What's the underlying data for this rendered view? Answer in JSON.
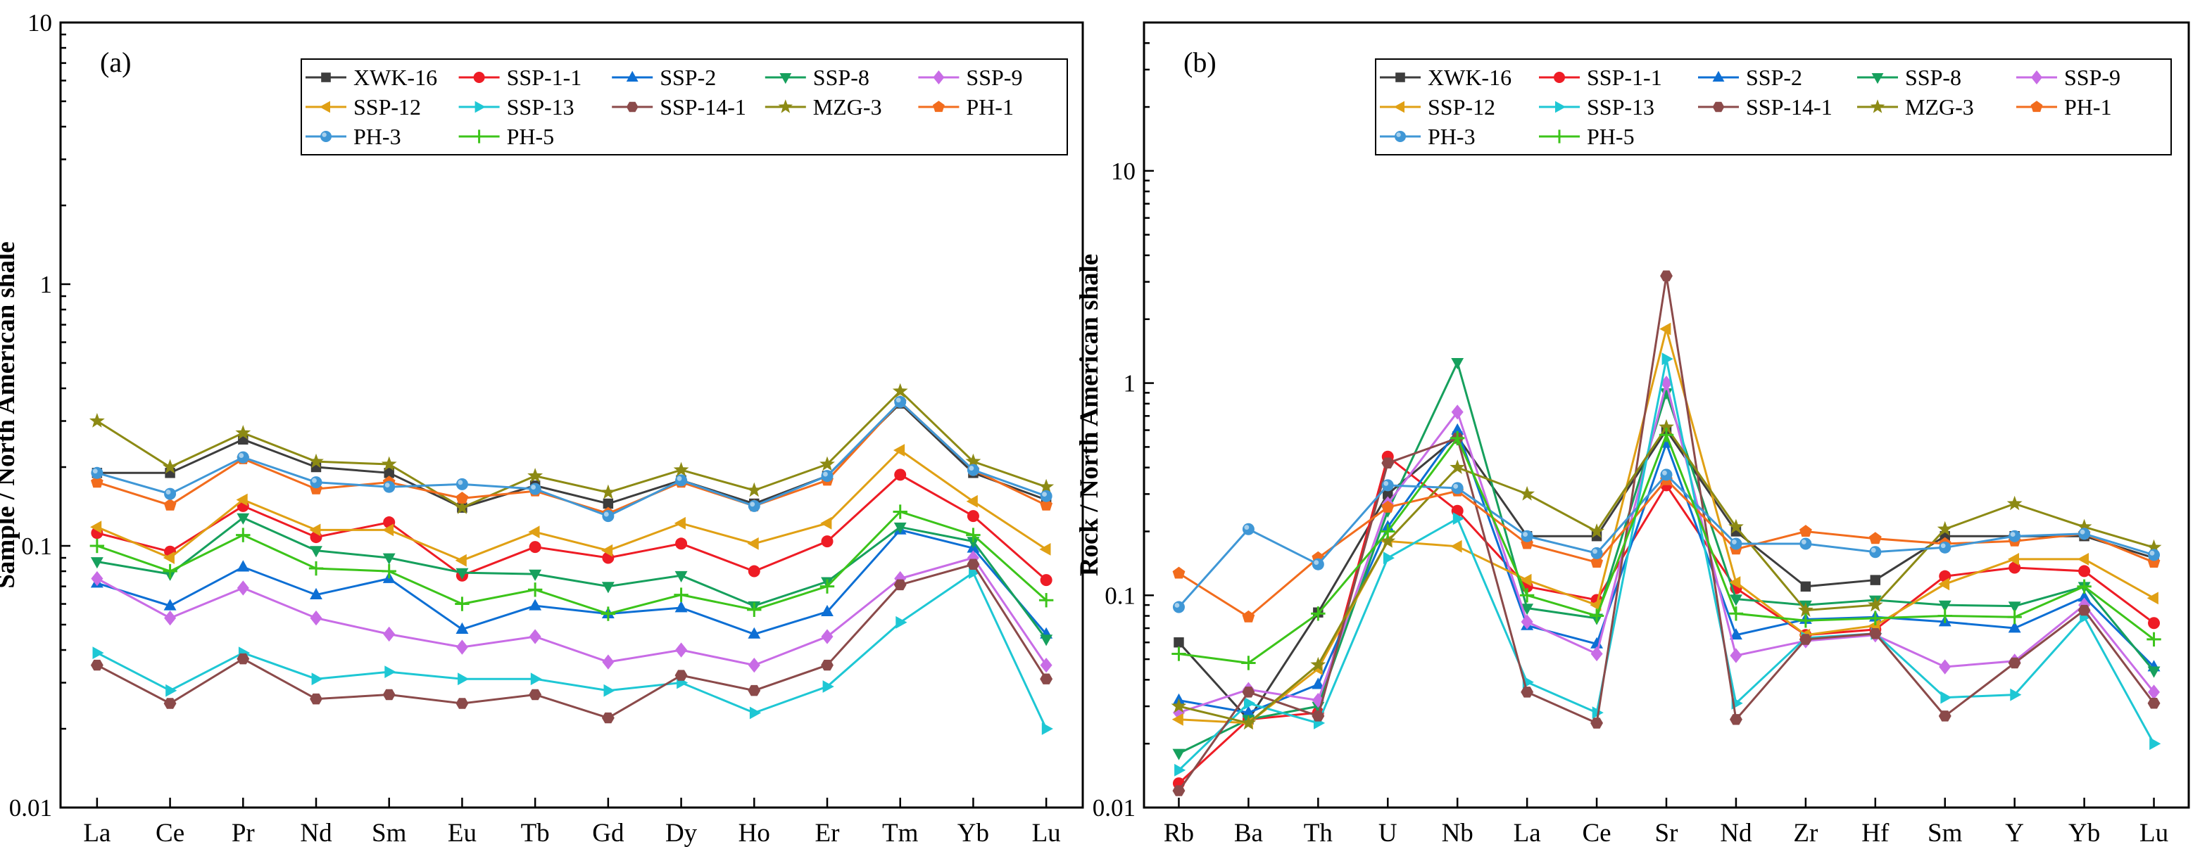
{
  "series_styles": [
    {
      "name": "XWK-16",
      "color": "#3d3d3d",
      "marker": "square"
    },
    {
      "name": "SSP-1-1",
      "color": "#ee1c25",
      "marker": "circle"
    },
    {
      "name": "SSP-2",
      "color": "#0d6fd4",
      "marker": "triangle-up"
    },
    {
      "name": "SSP-8",
      "color": "#16a05d",
      "marker": "triangle-down"
    },
    {
      "name": "SSP-9",
      "color": "#c86ce6",
      "marker": "diamond"
    },
    {
      "name": "SSP-12",
      "color": "#e0a014",
      "marker": "triangle-left"
    },
    {
      "name": "SSP-13",
      "color": "#1ec7d4",
      "marker": "triangle-right"
    },
    {
      "name": "SSP-14-1",
      "color": "#8b4a4a",
      "marker": "hexagon"
    },
    {
      "name": "MZG-3",
      "color": "#8c8a14",
      "marker": "star"
    },
    {
      "name": "PH-1",
      "color": "#f26c1d",
      "marker": "pentagon"
    },
    {
      "name": "PH-3",
      "color": "#3f97d6",
      "marker": "circle-dot"
    },
    {
      "name": "PH-5",
      "color": "#3cc41a",
      "marker": "plus"
    }
  ],
  "chart_data": [
    {
      "type": "line",
      "panel_label": "(a)",
      "ylabel": "Sample / North American shale",
      "xlabel": "",
      "yscale": "log",
      "ylim": [
        0.01,
        10
      ],
      "y_ticks": [
        0.01,
        0.1,
        1,
        10
      ],
      "y_tick_labels": [
        "0.01",
        "0.1",
        "1",
        "10"
      ],
      "categories": [
        "La",
        "Ce",
        "Pr",
        "Nd",
        "Sm",
        "Eu",
        "Tb",
        "Gd",
        "Dy",
        "Ho",
        "Er",
        "Tm",
        "Yb",
        "Lu"
      ],
      "legend_position": "top-right",
      "series": [
        {
          "name": "XWK-16",
          "values": [
            0.19,
            0.19,
            0.255,
            0.2,
            0.19,
            0.14,
            0.17,
            0.145,
            0.178,
            0.145,
            0.185,
            0.35,
            0.19,
            0.15
          ]
        },
        {
          "name": "SSP-1-1",
          "values": [
            0.112,
            0.095,
            0.142,
            0.108,
            0.123,
            0.077,
            0.099,
            0.09,
            0.102,
            0.08,
            0.104,
            0.187,
            0.13,
            0.074
          ]
        },
        {
          "name": "SSP-2",
          "values": [
            0.072,
            0.059,
            0.083,
            0.065,
            0.075,
            0.048,
            0.059,
            0.055,
            0.058,
            0.046,
            0.056,
            0.115,
            0.098,
            0.046
          ]
        },
        {
          "name": "SSP-8",
          "values": [
            0.087,
            0.078,
            0.128,
            0.096,
            0.09,
            0.079,
            0.078,
            0.07,
            0.077,
            0.059,
            0.073,
            0.118,
            0.104,
            0.044
          ]
        },
        {
          "name": "SSP-9",
          "values": [
            0.075,
            0.053,
            0.069,
            0.053,
            0.046,
            0.041,
            0.045,
            0.036,
            0.04,
            0.035,
            0.045,
            0.075,
            0.09,
            0.035
          ]
        },
        {
          "name": "SSP-12",
          "values": [
            0.118,
            0.09,
            0.15,
            0.115,
            0.115,
            0.088,
            0.113,
            0.096,
            0.122,
            0.102,
            0.122,
            0.232,
            0.148,
            0.097
          ]
        },
        {
          "name": "SSP-13",
          "values": [
            0.039,
            0.028,
            0.039,
            0.031,
            0.033,
            0.031,
            0.031,
            0.028,
            0.03,
            0.023,
            0.029,
            0.051,
            0.079,
            0.02
          ]
        },
        {
          "name": "SSP-14-1",
          "values": [
            0.035,
            0.025,
            0.037,
            0.026,
            0.027,
            0.025,
            0.027,
            0.022,
            0.032,
            0.028,
            0.035,
            0.071,
            0.085,
            0.031
          ]
        },
        {
          "name": "MZG-3",
          "values": [
            0.3,
            0.2,
            0.27,
            0.21,
            0.205,
            0.14,
            0.185,
            0.16,
            0.195,
            0.163,
            0.205,
            0.39,
            0.21,
            0.168
          ]
        },
        {
          "name": "PH-1",
          "values": [
            0.175,
            0.143,
            0.215,
            0.165,
            0.175,
            0.152,
            0.162,
            0.133,
            0.175,
            0.142,
            0.178,
            0.355,
            0.195,
            0.143
          ]
        },
        {
          "name": "PH-3",
          "values": [
            0.19,
            0.158,
            0.218,
            0.175,
            0.168,
            0.172,
            0.165,
            0.13,
            0.178,
            0.142,
            0.185,
            0.355,
            0.195,
            0.155
          ]
        },
        {
          "name": "PH-5",
          "values": [
            0.1,
            0.08,
            0.11,
            0.082,
            0.08,
            0.06,
            0.068,
            0.055,
            0.065,
            0.057,
            0.07,
            0.135,
            0.11,
            0.062
          ]
        }
      ]
    },
    {
      "type": "line",
      "panel_label": "(b)",
      "ylabel": "Rock / North American shale",
      "xlabel": "",
      "yscale": "log",
      "ylim": [
        0.01,
        50
      ],
      "y_ticks": [
        0.01,
        0.1,
        1,
        10
      ],
      "y_tick_labels": [
        "0.01",
        "0.1",
        "1",
        "10"
      ],
      "categories": [
        "Rb",
        "Ba",
        "Th",
        "U",
        "Nb",
        "La",
        "Ce",
        "Sr",
        "Nd",
        "Zr",
        "Hf",
        "Sm",
        "Y",
        "Yb",
        "Lu"
      ],
      "legend_position": "top-right",
      "series": [
        {
          "name": "XWK-16",
          "values": [
            0.06,
            0.026,
            0.083,
            0.3,
            0.56,
            0.19,
            0.19,
            0.6,
            0.2,
            0.11,
            0.118,
            0.19,
            0.19,
            0.19,
            0.15
          ]
        },
        {
          "name": "SSP-1-1",
          "values": [
            0.013,
            0.026,
            0.028,
            0.45,
            0.25,
            0.11,
            0.095,
            0.33,
            0.108,
            0.065,
            0.069,
            0.123,
            0.135,
            0.13,
            0.074
          ]
        },
        {
          "name": "SSP-2",
          "values": [
            0.032,
            0.028,
            0.038,
            0.21,
            0.6,
            0.072,
            0.059,
            0.52,
            0.065,
            0.077,
            0.079,
            0.075,
            0.07,
            0.098,
            0.046
          ]
        },
        {
          "name": "SSP-8",
          "values": [
            0.018,
            0.026,
            0.03,
            0.25,
            1.25,
            0.087,
            0.078,
            0.9,
            0.096,
            0.09,
            0.095,
            0.09,
            0.089,
            0.11,
            0.044
          ]
        },
        {
          "name": "SSP-9",
          "values": [
            0.028,
            0.036,
            0.032,
            0.27,
            0.73,
            0.075,
            0.053,
            1.0,
            0.052,
            0.061,
            0.065,
            0.046,
            0.049,
            0.09,
            0.035
          ]
        },
        {
          "name": "SSP-12",
          "values": [
            0.026,
            0.025,
            0.045,
            0.18,
            0.17,
            0.118,
            0.09,
            1.8,
            0.115,
            0.065,
            0.072,
            0.113,
            0.148,
            0.148,
            0.097
          ]
        },
        {
          "name": "SSP-13",
          "values": [
            0.015,
            0.031,
            0.025,
            0.15,
            0.23,
            0.039,
            0.028,
            1.3,
            0.031,
            0.063,
            0.066,
            0.033,
            0.034,
            0.079,
            0.02
          ]
        },
        {
          "name": "SSP-14-1",
          "values": [
            0.012,
            0.035,
            0.027,
            0.42,
            0.55,
            0.035,
            0.025,
            3.2,
            0.026,
            0.062,
            0.066,
            0.027,
            0.048,
            0.085,
            0.031
          ]
        },
        {
          "name": "MZG-3",
          "values": [
            0.03,
            0.025,
            0.047,
            0.18,
            0.4,
            0.3,
            0.2,
            0.62,
            0.21,
            0.085,
            0.09,
            0.205,
            0.27,
            0.21,
            0.168
          ]
        },
        {
          "name": "PH-1",
          "values": [
            0.127,
            0.079,
            0.15,
            0.26,
            0.31,
            0.175,
            0.143,
            0.35,
            0.165,
            0.2,
            0.185,
            0.175,
            0.18,
            0.195,
            0.143
          ]
        },
        {
          "name": "PH-3",
          "values": [
            0.088,
            0.205,
            0.14,
            0.33,
            0.32,
            0.19,
            0.158,
            0.37,
            0.175,
            0.175,
            0.16,
            0.168,
            0.19,
            0.195,
            0.155
          ]
        },
        {
          "name": "PH-5",
          "values": [
            0.053,
            0.048,
            0.082,
            0.2,
            0.55,
            0.1,
            0.08,
            0.57,
            0.082,
            0.076,
            0.078,
            0.08,
            0.079,
            0.11,
            0.062
          ]
        }
      ]
    }
  ]
}
